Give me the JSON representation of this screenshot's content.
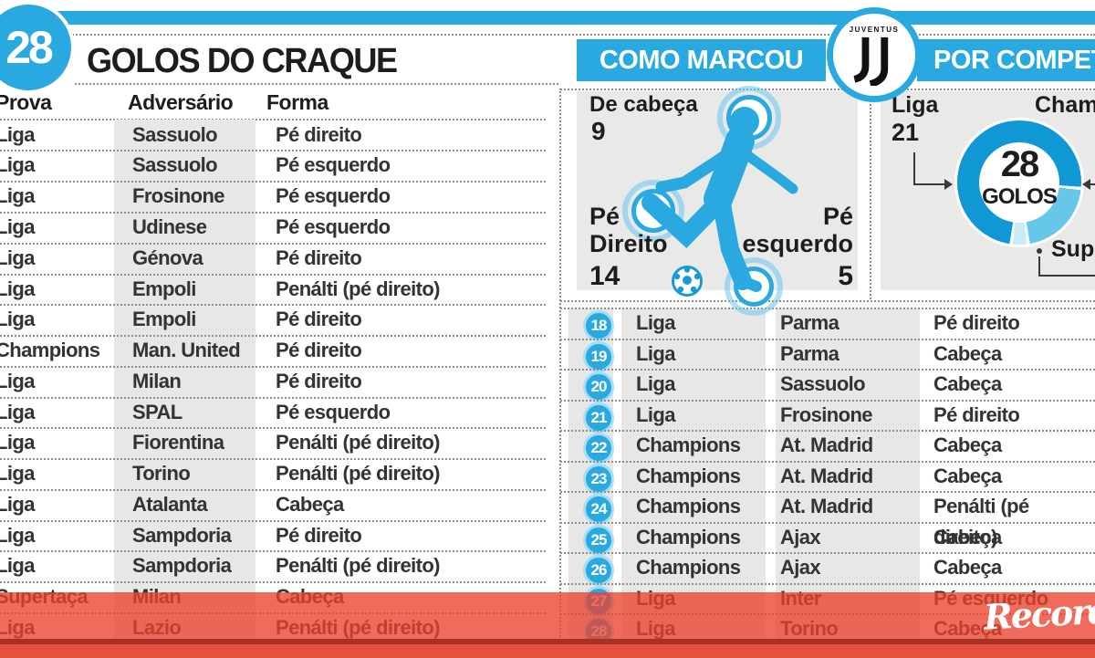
{
  "header": {
    "total_goals": "28",
    "title": "GOLOS DO CRAQUE",
    "section_como": "COMO MARCOU",
    "section_por": "POR COMPETIÇÃO"
  },
  "badge": {
    "team": "JUVENTUS"
  },
  "left_table": {
    "columns": {
      "prova": "Prova",
      "adversario": "Adversário",
      "forma": "Forma"
    },
    "rows": [
      {
        "prova": "Liga",
        "adversario": "Sassuolo",
        "forma": "Pé direito"
      },
      {
        "prova": "Liga",
        "adversario": "Sassuolo",
        "forma": "Pé esquerdo"
      },
      {
        "prova": "Liga",
        "adversario": "Frosinone",
        "forma": "Pé esquerdo"
      },
      {
        "prova": "Liga",
        "adversario": "Udinese",
        "forma": "Pé esquerdo"
      },
      {
        "prova": "Liga",
        "adversario": "Génova",
        "forma": "Pé direito"
      },
      {
        "prova": "Liga",
        "adversario": "Empoli",
        "forma": "Penálti (pé direito)"
      },
      {
        "prova": "Liga",
        "adversario": "Empoli",
        "forma": "Pé direito"
      },
      {
        "prova": "Champions",
        "adversario": "Man. United",
        "forma": "Pé direito"
      },
      {
        "prova": "Liga",
        "adversario": "Milan",
        "forma": "Pé direito"
      },
      {
        "prova": "Liga",
        "adversario": "SPAL",
        "forma": "Pé esquerdo"
      },
      {
        "prova": "Liga",
        "adversario": "Fiorentina",
        "forma": "Penálti (pé direito)"
      },
      {
        "prova": "Liga",
        "adversario": "Torino",
        "forma": "Penálti (pé direito)"
      },
      {
        "prova": "Liga",
        "adversario": "Atalanta",
        "forma": "Cabeça"
      },
      {
        "prova": "Liga",
        "adversario": "Sampdoria",
        "forma": "Pé direito"
      },
      {
        "prova": "Liga",
        "adversario": "Sampdoria",
        "forma": "Penálti (pé direito)"
      },
      {
        "prova": "Supertaça",
        "adversario": "Milan",
        "forma": "Cabeça"
      },
      {
        "prova": "Liga",
        "adversario": "Lazio",
        "forma": "Penálti (pé direito)"
      }
    ]
  },
  "right_table": {
    "rows": [
      {
        "num": "18",
        "prova": "Liga",
        "adversario": "Parma",
        "forma": "Pé direito"
      },
      {
        "num": "19",
        "prova": "Liga",
        "adversario": "Parma",
        "forma": "Cabeça"
      },
      {
        "num": "20",
        "prova": "Liga",
        "adversario": "Sassuolo",
        "forma": "Cabeça"
      },
      {
        "num": "21",
        "prova": "Liga",
        "adversario": "Frosinone",
        "forma": "Pé direito"
      },
      {
        "num": "22",
        "prova": "Champions",
        "adversario": "At. Madrid",
        "forma": "Cabeça"
      },
      {
        "num": "23",
        "prova": "Champions",
        "adversario": "At. Madrid",
        "forma": "Cabeça"
      },
      {
        "num": "24",
        "prova": "Champions",
        "adversario": "At. Madrid",
        "forma": "Penálti (pé direito)"
      },
      {
        "num": "25",
        "prova": "Champions",
        "adversario": "Ajax",
        "forma": "Cabeça"
      },
      {
        "num": "26",
        "prova": "Champions",
        "adversario": "Ajax",
        "forma": "Cabeça"
      },
      {
        "num": "27",
        "prova": "Liga",
        "adversario": "Inter",
        "forma": "Pé esquerdo"
      },
      {
        "num": "28",
        "prova": "Liga",
        "adversario": "Torino",
        "forma": "Cabeça"
      }
    ]
  },
  "how_scored": {
    "head_label": "De cabeça",
    "head_value": "9",
    "right_foot_label_1": "Pé",
    "right_foot_label_2": "Direito",
    "right_foot_value": "14",
    "left_foot_label_1": "Pé",
    "left_foot_label_2": "esquerdo",
    "left_foot_value": "5"
  },
  "competition": {
    "center_value": "28",
    "center_label": "GOLOS",
    "liga_label": "Liga",
    "liga_value": "21",
    "champions_label": "Champions",
    "supertaca_label": "Supertaça"
  },
  "watermark": {
    "brand": "Record"
  },
  "colors": {
    "accent_blue": "#2aa9e1",
    "donut_liga": "#0f98d4",
    "donut_champions": "#66c7ea",
    "donut_supertaca": "#c9eaf7",
    "overlay_red": "#eb422e"
  },
  "chart_data": [
    {
      "type": "pie",
      "title": "POR COMPETIÇÃO",
      "categories": [
        "Liga",
        "Champions",
        "Supertaça"
      ],
      "values": [
        21,
        6,
        1
      ],
      "total": 28,
      "center_label": "28 GOLOS",
      "colors": [
        "#0f98d4",
        "#66c7ea",
        "#c9eaf7"
      ],
      "legend_position": "callout-labels"
    },
    {
      "type": "pictogram",
      "title": "COMO MARCOU",
      "categories": [
        "De cabeça",
        "Pé Direito",
        "Pé esquerdo"
      ],
      "values": [
        9,
        14,
        5
      ],
      "total": 28
    }
  ]
}
